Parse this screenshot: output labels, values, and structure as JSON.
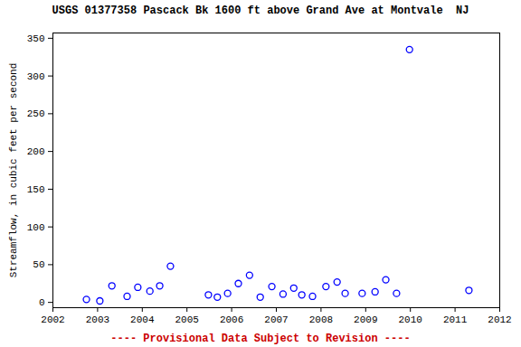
{
  "chart_data": {
    "type": "scatter",
    "title": "USGS 01377358 Pascack Bk 1600 ft above Grand Ave at Montvale  NJ",
    "caption": "---- Provisional Data Subject to Revision ----",
    "y_label": "Streamflow, in cubic feet per second",
    "x": [
      2002.75,
      2003.05,
      2003.32,
      2003.66,
      2003.9,
      2004.17,
      2004.39,
      2004.63,
      2005.48,
      2005.68,
      2005.91,
      2006.15,
      2006.4,
      2006.64,
      2006.9,
      2007.15,
      2007.39,
      2007.57,
      2007.81,
      2008.11,
      2008.36,
      2008.54,
      2008.92,
      2009.21,
      2009.45,
      2009.69,
      2009.98,
      2011.31
    ],
    "values": [
      4,
      2,
      22,
      8,
      20,
      15,
      22,
      48,
      10,
      7,
      12,
      25,
      36,
      7,
      21,
      11,
      19,
      10,
      8,
      21,
      27,
      12,
      12,
      14,
      30,
      12,
      335,
      16
    ],
    "color": "#0000ff",
    "marker": "circle",
    "xlim": [
      2002,
      2012
    ],
    "xticks": [
      2002,
      2003,
      2004,
      2005,
      2006,
      2007,
      2008,
      2009,
      2010,
      2011,
      2012
    ],
    "ylim": [
      -7,
      357
    ],
    "yticks": [
      0,
      50,
      100,
      150,
      200,
      250,
      300,
      350
    ],
    "grid": false
  }
}
